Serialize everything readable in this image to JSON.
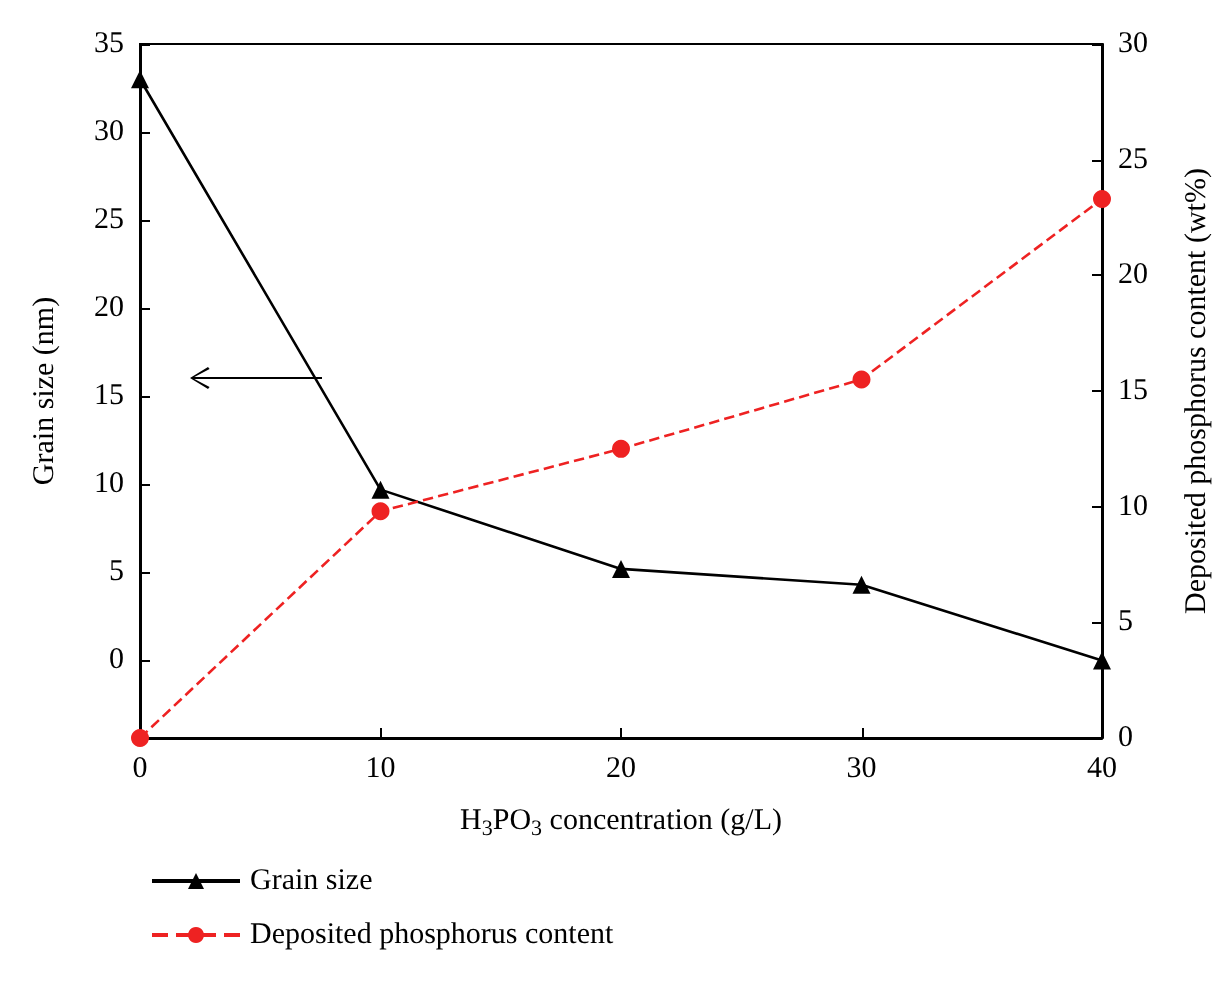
{
  "chart_data": {
    "type": "line",
    "xlabel": "H$_{3}$PO$_{3}$ concentration (g/L)",
    "ylabel": "Grain size (nm)",
    "y2label": "Deposited phosphorus content (wt%)",
    "x": [
      0,
      10,
      20,
      30,
      40
    ],
    "xlim": [
      0,
      40
    ],
    "xticks": [
      0,
      10,
      20,
      30,
      40
    ],
    "ylim": [
      -4.4,
      35
    ],
    "yticks": [
      0,
      5,
      10,
      15,
      20,
      25,
      30,
      35
    ],
    "y2lim": [
      0,
      30
    ],
    "y2ticks": [
      0,
      5,
      10,
      15,
      20,
      25,
      30
    ],
    "series": [
      {
        "name": "Grain size",
        "color": "#000000",
        "values": [
          33,
          9.7,
          5.2,
          4.3,
          0
        ],
        "marker": "triangle",
        "line_style": "solid"
      },
      {
        "name": "Deposited phosphorus content",
        "color": "#ee2222",
        "values": [
          0,
          9.8,
          12.5,
          15.5,
          23.3
        ],
        "marker": "circle",
        "line_style": "dashed",
        "axis": "y2"
      }
    ],
    "grid": false,
    "legend": "bottom left"
  }
}
